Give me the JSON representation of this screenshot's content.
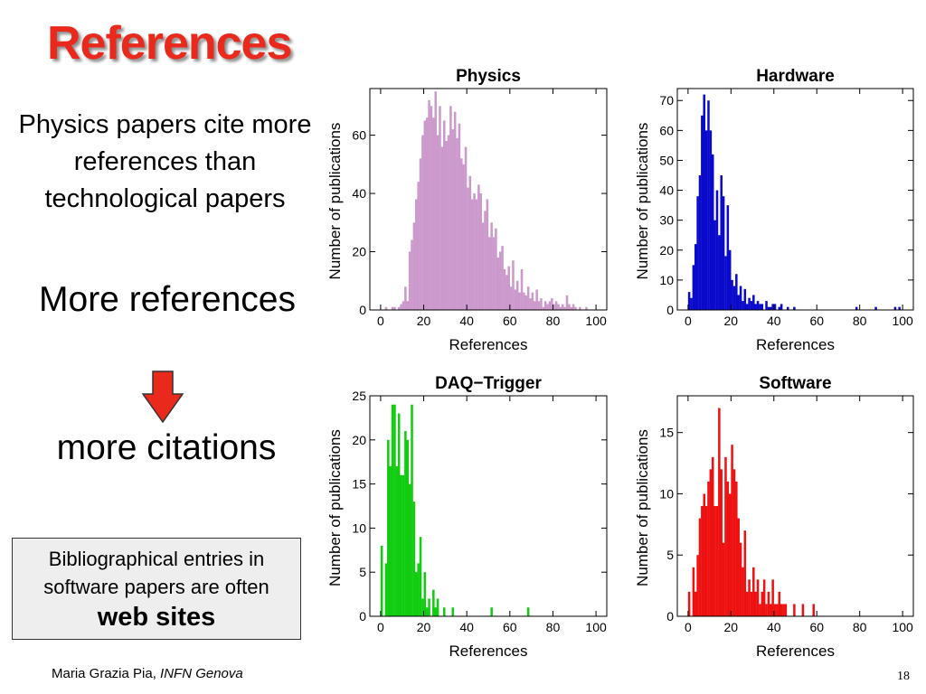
{
  "slide": {
    "title": "References",
    "text1": "Physics papers cite more references than technological papers",
    "text2": "More references",
    "text3": "more citations",
    "note_line1": "Bibliographical entries in",
    "note_line2": "software papers are often",
    "note_bold": "web sites",
    "footer_author": "Maria Grazia Pia, ",
    "footer_institution": "INFN Genova",
    "page_number": "18",
    "arrow_color": "#e8291c"
  },
  "chart_data": [
    {
      "type": "bar",
      "title": "Physics",
      "xlabel": "References",
      "ylabel": "Number of publications",
      "color": "#cc99cc",
      "xlim": [
        -5,
        105
      ],
      "ylim": [
        0,
        76
      ],
      "xticks": [
        0,
        20,
        40,
        60,
        80,
        100
      ],
      "yticks": [
        0,
        20,
        40,
        60
      ],
      "bin_width": 1,
      "bin_start": 0,
      "values": [
        0,
        0,
        1,
        0,
        0,
        1,
        1,
        0,
        1,
        2,
        3,
        8,
        3,
        20,
        24,
        30,
        38,
        44,
        52,
        60,
        65,
        66,
        72,
        70,
        66,
        75,
        60,
        70,
        56,
        65,
        58,
        60,
        70,
        62,
        68,
        59,
        64,
        52,
        50,
        56,
        42,
        46,
        38,
        40,
        38,
        43,
        40,
        30,
        34,
        38,
        25,
        30,
        25,
        28,
        18,
        20,
        22,
        14,
        12,
        15,
        8,
        17,
        7,
        10,
        6,
        14,
        6,
        5,
        8,
        4,
        6,
        3,
        7,
        3,
        4,
        1,
        3,
        2,
        3,
        4,
        2,
        3,
        2,
        1,
        2,
        1,
        5,
        2,
        1,
        2,
        1,
        0,
        1,
        0,
        0,
        1,
        0,
        0,
        0,
        0
      ]
    },
    {
      "type": "bar",
      "title": "Hardware",
      "xlabel": "References",
      "ylabel": "Number of publications",
      "color": "#0a0acc",
      "xlim": [
        -5,
        105
      ],
      "ylim": [
        0,
        74
      ],
      "xticks": [
        0,
        20,
        40,
        60,
        80,
        100
      ],
      "yticks": [
        0,
        10,
        20,
        30,
        40,
        50,
        60,
        70
      ],
      "bin_width": 1,
      "bin_start": 0,
      "values": [
        6,
        4,
        15,
        22,
        38,
        45,
        65,
        72,
        60,
        70,
        60,
        52,
        30,
        40,
        25,
        45,
        38,
        18,
        35,
        20,
        10,
        8,
        12,
        5,
        8,
        3,
        7,
        2,
        4,
        3,
        5,
        2,
        3,
        2,
        2,
        0,
        3,
        1,
        1,
        2,
        2,
        0,
        1,
        2,
        0,
        0,
        1,
        0,
        0,
        1,
        0,
        0,
        0,
        0,
        0,
        0,
        0,
        0,
        0,
        0,
        0,
        0,
        0,
        0,
        0,
        0,
        0,
        0,
        0,
        0,
        0,
        0,
        0,
        0,
        0,
        0,
        0,
        0,
        1,
        0,
        0,
        0,
        0,
        0,
        0,
        0,
        0,
        1,
        0,
        0,
        0,
        0,
        0,
        0,
        0,
        0,
        1,
        0,
        1,
        0
      ]
    },
    {
      "type": "bar",
      "title": "DAQ−Trigger",
      "xlabel": "References",
      "ylabel": "Number of publications",
      "color": "#11cc11",
      "xlim": [
        -5,
        105
      ],
      "ylim": [
        0,
        25
      ],
      "xticks": [
        0,
        20,
        40,
        60,
        80,
        100
      ],
      "yticks": [
        0,
        5,
        10,
        15,
        20,
        25
      ],
      "bin_width": 1,
      "bin_start": 0,
      "values": [
        8,
        0,
        6,
        20,
        17,
        24,
        24,
        17,
        23,
        16,
        16,
        21,
        20,
        15,
        24,
        13,
        5,
        6,
        9,
        2,
        5,
        1,
        2,
        0,
        3,
        1,
        2,
        0,
        0,
        1,
        0,
        0,
        0,
        1,
        0,
        0,
        0,
        0,
        0,
        0,
        0,
        0,
        0,
        0,
        0,
        0,
        0,
        0,
        0,
        0,
        0,
        1,
        0,
        0,
        0,
        0,
        0,
        0,
        0,
        0,
        0,
        0,
        0,
        0,
        0,
        0,
        0,
        0,
        1,
        0,
        0,
        0,
        0,
        0,
        0,
        0,
        0,
        0,
        0,
        0,
        0,
        0,
        0,
        0,
        0,
        0,
        0,
        0,
        0,
        0,
        0,
        0,
        0,
        0,
        0,
        0,
        0,
        0,
        0,
        0
      ]
    },
    {
      "type": "bar",
      "title": "Software",
      "xlabel": "References",
      "ylabel": "Number of publications",
      "color": "#ee1111",
      "xlim": [
        -5,
        105
      ],
      "ylim": [
        0,
        18
      ],
      "xticks": [
        0,
        20,
        40,
        60,
        80,
        100
      ],
      "yticks": [
        0,
        5,
        10,
        15
      ],
      "bin_width": 1,
      "bin_start": 0,
      "values": [
        2,
        0,
        4,
        2,
        5,
        8,
        9,
        10,
        9,
        11,
        12,
        13,
        9,
        9,
        17,
        12,
        6,
        13,
        11,
        10,
        14,
        12,
        11,
        8,
        6,
        4,
        7,
        2,
        3,
        2,
        4,
        2,
        3,
        1,
        2,
        3,
        1,
        2,
        1,
        3,
        1,
        1,
        2,
        1,
        1,
        1,
        0,
        0,
        0,
        1,
        0,
        0,
        0,
        1,
        0,
        0,
        0,
        0,
        1,
        0,
        0,
        0,
        0,
        0,
        0,
        0,
        0,
        0,
        0,
        0,
        0,
        0,
        0,
        0,
        0,
        0,
        0,
        0,
        0,
        0,
        0,
        0,
        0,
        0,
        0,
        0,
        0,
        0,
        0,
        0,
        0,
        0,
        0,
        0,
        0,
        0,
        0,
        0,
        0,
        0
      ]
    }
  ]
}
